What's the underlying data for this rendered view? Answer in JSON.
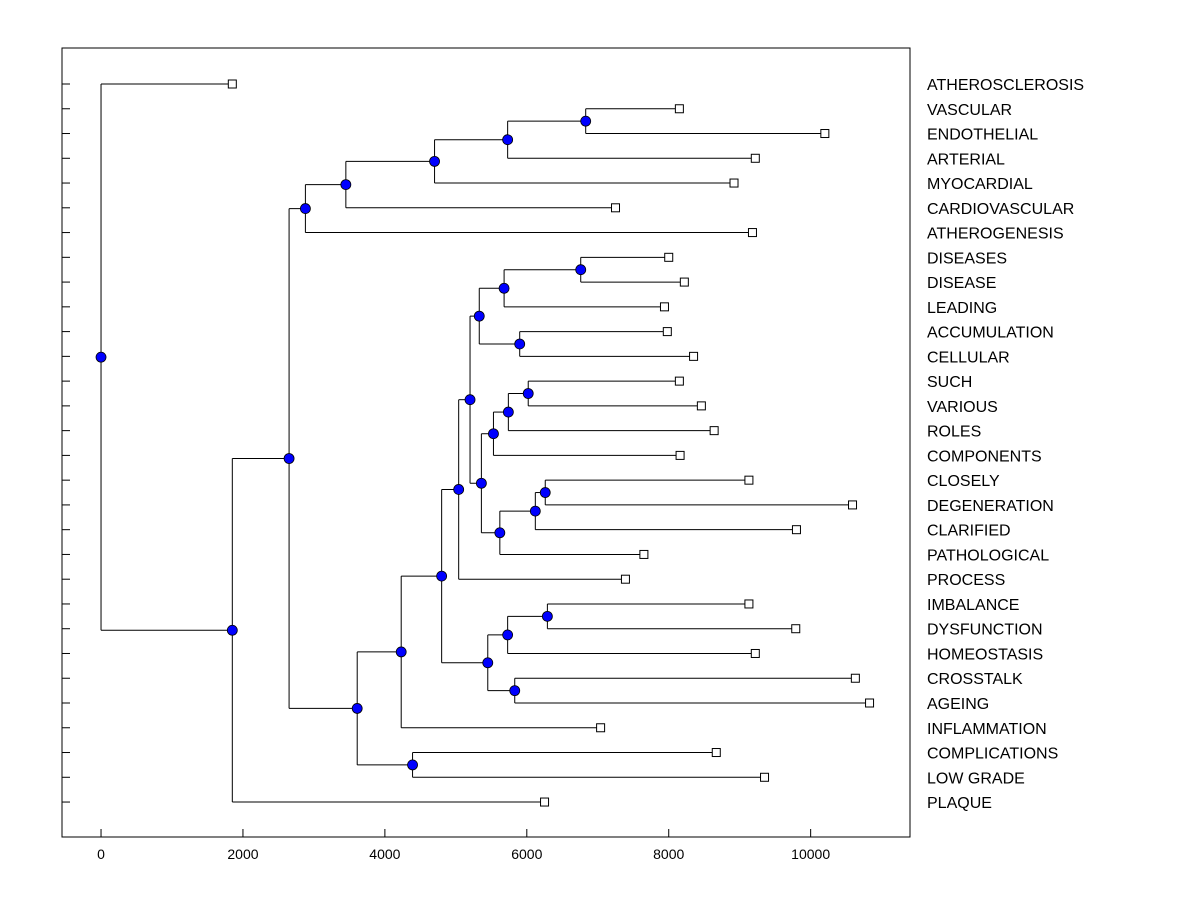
{
  "chart_data": {
    "type": "dendrogram",
    "orientation": "horizontal",
    "title": "",
    "xlabel": "",
    "ylabel": "",
    "xlim": [
      -550,
      11400
    ],
    "xticks": [
      0,
      2000,
      4000,
      6000,
      8000,
      10000
    ],
    "xtick_labels": [
      "0",
      "2000",
      "4000",
      "6000",
      "8000",
      "10000"
    ],
    "grid": false,
    "colors": {
      "node_fill": "#0000ff",
      "leaf_fill": "#ffffff",
      "line": "#000000"
    },
    "leaves": [
      {
        "label": "ATHEROSCLEROSIS",
        "value": 1850
      },
      {
        "label": "VASCULAR",
        "value": 8150
      },
      {
        "label": "ENDOTHELIAL",
        "value": 10200
      },
      {
        "label": "ARTERIAL",
        "value": 9220
      },
      {
        "label": "MYOCARDIAL",
        "value": 8920
      },
      {
        "label": "CARDIOVASCULAR",
        "value": 7250
      },
      {
        "label": "ATHEROGENESIS",
        "value": 9180
      },
      {
        "label": "DISEASES",
        "value": 8000
      },
      {
        "label": "DISEASE",
        "value": 8220
      },
      {
        "label": "LEADING",
        "value": 7940
      },
      {
        "label": "ACCUMULATION",
        "value": 7980
      },
      {
        "label": "CELLULAR",
        "value": 8350
      },
      {
        "label": "SUCH",
        "value": 8150
      },
      {
        "label": "VARIOUS",
        "value": 8460
      },
      {
        "label": "ROLES",
        "value": 8640
      },
      {
        "label": "COMPONENTS",
        "value": 8160
      },
      {
        "label": "CLOSELY",
        "value": 9130
      },
      {
        "label": "DEGENERATION",
        "value": 10590
      },
      {
        "label": "CLARIFIED",
        "value": 9800
      },
      {
        "label": "PATHOLOGICAL",
        "value": 7650
      },
      {
        "label": "PROCESS",
        "value": 7390
      },
      {
        "label": "IMBALANCE",
        "value": 9130
      },
      {
        "label": "DYSFUNCTION",
        "value": 9790
      },
      {
        "label": "HOMEOSTASIS",
        "value": 9220
      },
      {
        "label": "CROSSTALK",
        "value": 10630
      },
      {
        "label": "AGEING",
        "value": 10830
      },
      {
        "label": "INFLAMMATION",
        "value": 7040
      },
      {
        "label": "COMPLICATIONS",
        "value": 8670
      },
      {
        "label": "LOW GRADE",
        "value": 9350
      },
      {
        "label": "PLAQUE",
        "value": 6250
      }
    ],
    "merges": [
      {
        "id": "n1",
        "children": [
          "VASCULAR",
          "ENDOTHELIAL"
        ],
        "value": 6830
      },
      {
        "id": "n2",
        "children": [
          "n1",
          "ARTERIAL"
        ],
        "value": 5730
      },
      {
        "id": "n3",
        "children": [
          "n2",
          "MYOCARDIAL"
        ],
        "value": 4700
      },
      {
        "id": "n4",
        "children": [
          "n3",
          "CARDIOVASCULAR"
        ],
        "value": 3450
      },
      {
        "id": "n5",
        "children": [
          "n4",
          "ATHEROGENESIS"
        ],
        "value": 2880
      },
      {
        "id": "n6",
        "children": [
          "DISEASES",
          "DISEASE"
        ],
        "value": 6760
      },
      {
        "id": "n7",
        "children": [
          "n6",
          "LEADING"
        ],
        "value": 5680
      },
      {
        "id": "n8",
        "children": [
          "ACCUMULATION",
          "CELLULAR"
        ],
        "value": 5900
      },
      {
        "id": "n9",
        "children": [
          "n7",
          "n8"
        ],
        "value": 5330
      },
      {
        "id": "n10",
        "children": [
          "SUCH",
          "VARIOUS"
        ],
        "value": 6020
      },
      {
        "id": "n11",
        "children": [
          "n10",
          "ROLES"
        ],
        "value": 5740
      },
      {
        "id": "n12",
        "children": [
          "n11",
          "COMPONENTS"
        ],
        "value": 5530
      },
      {
        "id": "n13",
        "children": [
          "CLOSELY",
          "DEGENERATION"
        ],
        "value": 6260
      },
      {
        "id": "n14",
        "children": [
          "n13",
          "CLARIFIED"
        ],
        "value": 6120
      },
      {
        "id": "n15",
        "children": [
          "n14",
          "PATHOLOGICAL"
        ],
        "value": 5620
      },
      {
        "id": "n16",
        "children": [
          "n12",
          "n15"
        ],
        "value": 5360
      },
      {
        "id": "n17",
        "children": [
          "n9",
          "n16"
        ],
        "value": 5200
      },
      {
        "id": "n18",
        "children": [
          "n17",
          "PROCESS"
        ],
        "value": 5040
      },
      {
        "id": "n19",
        "children": [
          "IMBALANCE",
          "DYSFUNCTION"
        ],
        "value": 6290
      },
      {
        "id": "n20",
        "children": [
          "n19",
          "HOMEOSTASIS"
        ],
        "value": 5730
      },
      {
        "id": "n21",
        "children": [
          "CROSSTALK",
          "AGEING"
        ],
        "value": 5830
      },
      {
        "id": "n22",
        "children": [
          "n20",
          "n21"
        ],
        "value": 5450
      },
      {
        "id": "n23",
        "children": [
          "n18",
          "n22"
        ],
        "value": 4800
      },
      {
        "id": "n24",
        "children": [
          "n23",
          "INFLAMMATION"
        ],
        "value": 4230
      },
      {
        "id": "n25",
        "children": [
          "COMPLICATIONS",
          "LOW GRADE"
        ],
        "value": 4390
      },
      {
        "id": "n26",
        "children": [
          "n24",
          "n25"
        ],
        "value": 3610
      },
      {
        "id": "n27",
        "children": [
          "n5",
          "n26"
        ],
        "value": 2650
      },
      {
        "id": "n28",
        "children": [
          "n27",
          "PLAQUE"
        ],
        "value": 1850
      },
      {
        "id": "n29",
        "children": [
          "ATHEROSCLEROSIS",
          "n28"
        ],
        "value": 0
      }
    ]
  }
}
